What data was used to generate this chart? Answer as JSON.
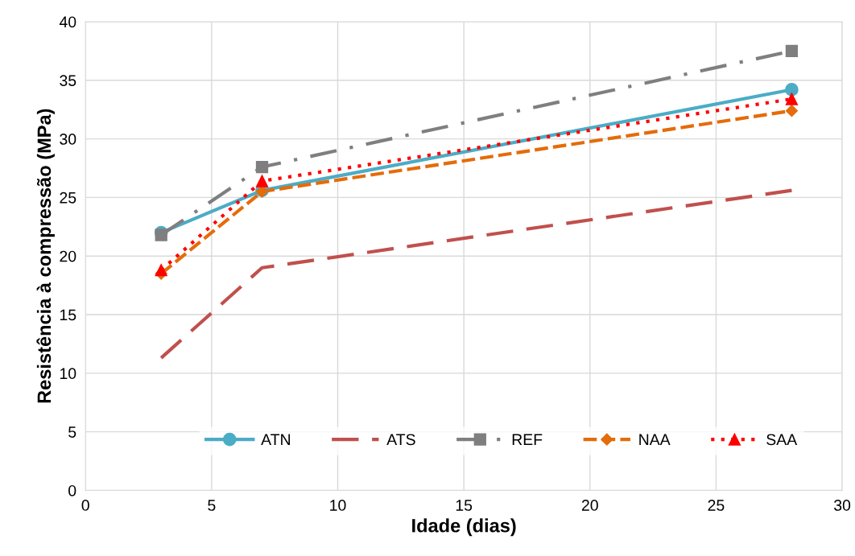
{
  "chart_data": {
    "type": "line",
    "xlabel": "Idade (dias)",
    "ylabel": "Resistência à compressão (MPa)",
    "x": [
      3,
      7,
      28
    ],
    "series": [
      {
        "name": "ATN",
        "color": "#4bacc6",
        "values": [
          22.0,
          25.6,
          34.2
        ],
        "marker": "circle",
        "line_style": "solid"
      },
      {
        "name": "ATS",
        "color": "#c0504d",
        "values": [
          11.3,
          19.0,
          25.6
        ],
        "marker": "none",
        "line_style": "longdash"
      },
      {
        "name": "REF",
        "color": "#7f7f7f",
        "values": [
          21.8,
          27.6,
          37.5
        ],
        "marker": "square",
        "line_style": "dashdot"
      },
      {
        "name": "NAA",
        "color": "#e46c0a",
        "values": [
          18.5,
          25.5,
          32.4
        ],
        "marker": "diamond",
        "line_style": "dashed"
      },
      {
        "name": "SAA",
        "color": "#ff0000",
        "values": [
          18.8,
          26.4,
          33.4
        ],
        "marker": "triangle",
        "line_style": "dotted"
      }
    ],
    "xlim": [
      0,
      30
    ],
    "xticks": [
      0,
      5,
      10,
      15,
      20,
      25,
      30
    ],
    "ylim": [
      0,
      40
    ],
    "yticks": [
      0,
      5,
      10,
      15,
      20,
      25,
      30,
      35,
      40
    ],
    "grid": true,
    "legend": "bottom"
  }
}
